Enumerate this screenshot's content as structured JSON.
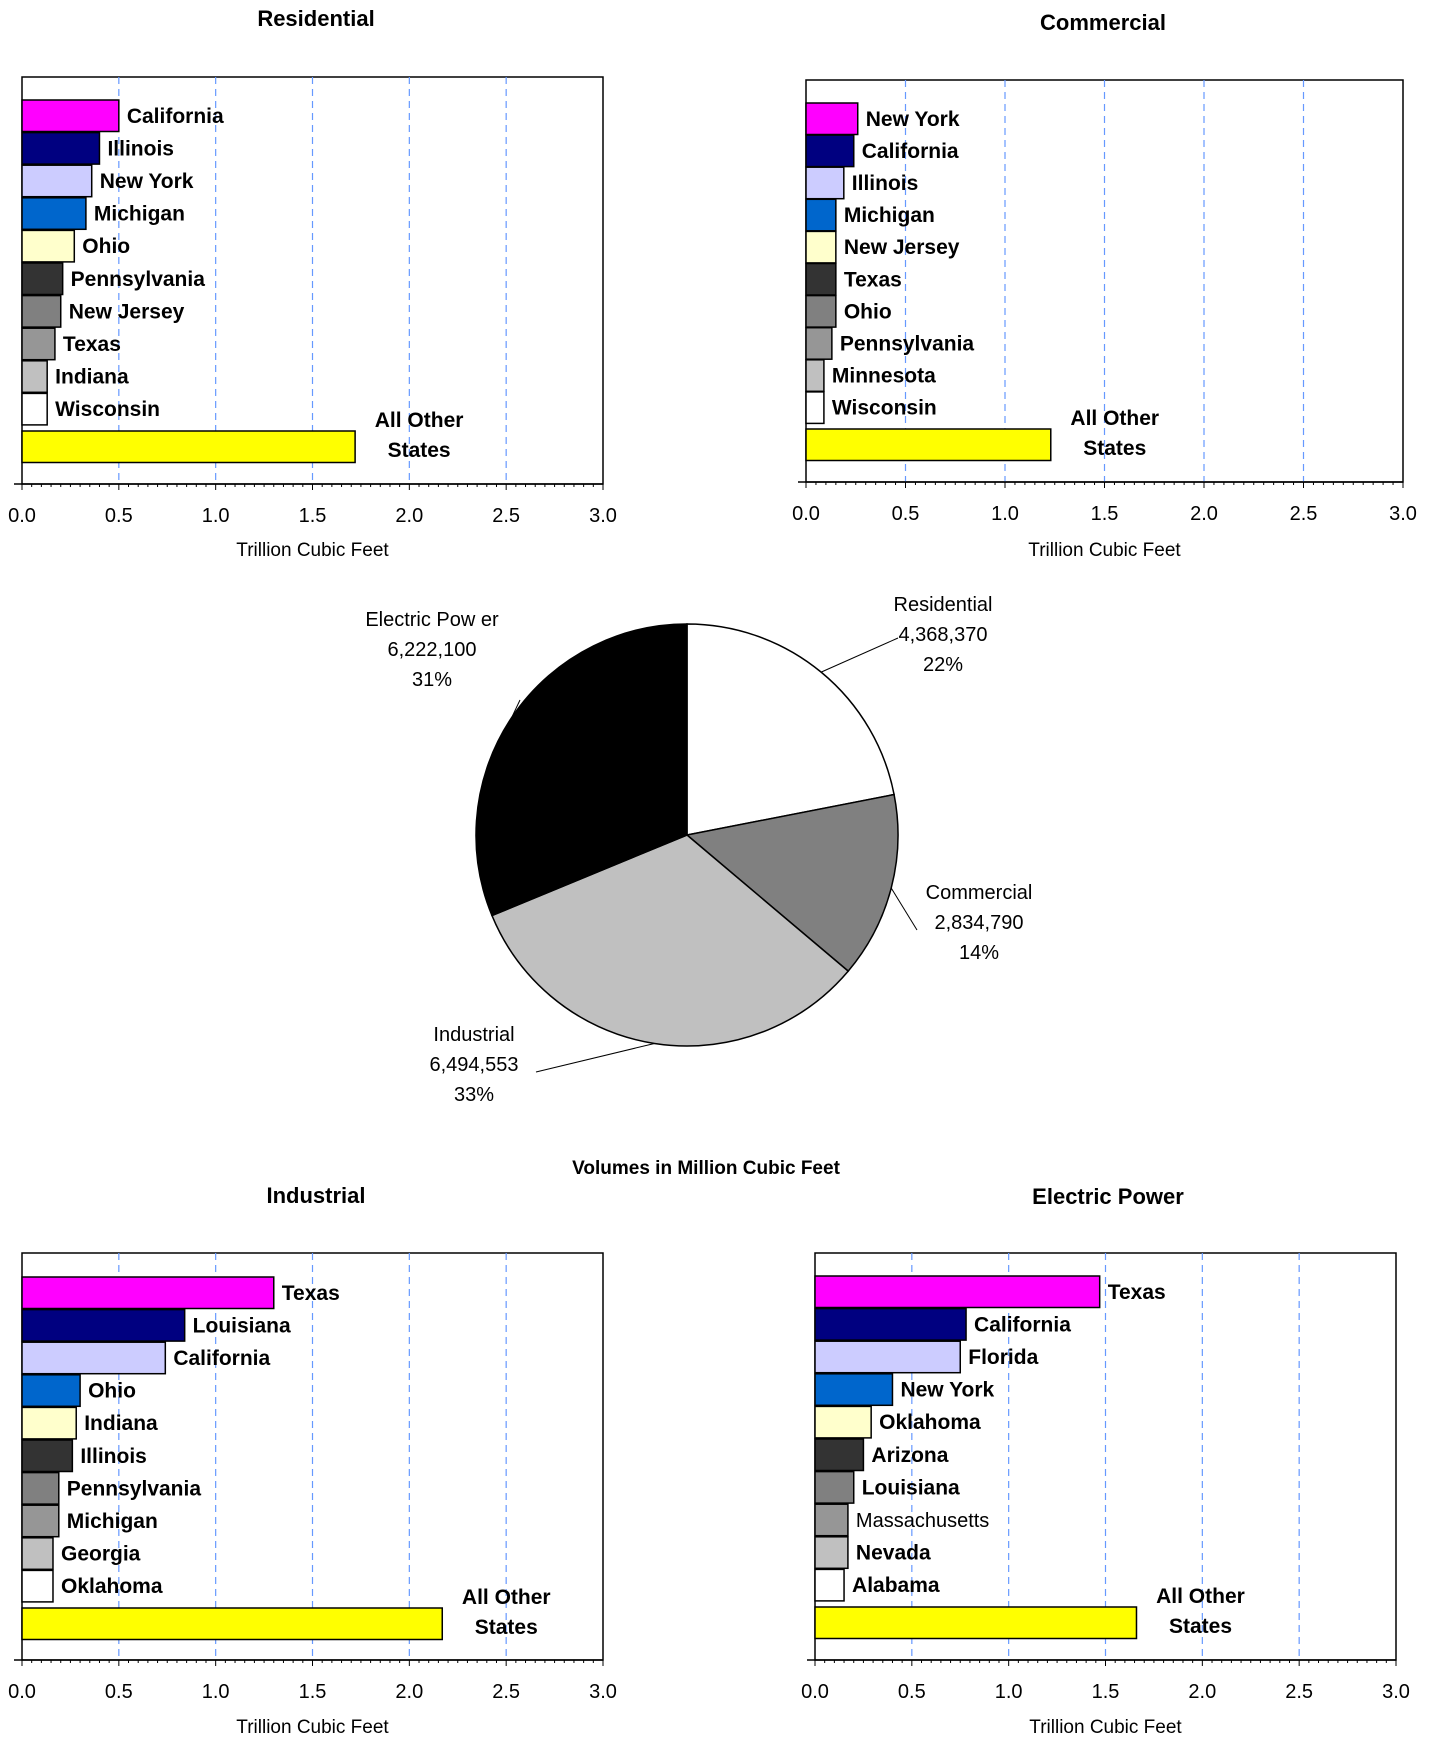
{
  "caption": "Volumes in Million Cubic Feet",
  "colors": [
    "#FF00FF",
    "#000080",
    "#CCCCFF",
    "#0066CC",
    "#FFFFCC",
    "#333333",
    "#808080",
    "#969696",
    "#C0C0C0",
    "#FFFFFF",
    "#FFFF00"
  ],
  "chart_data": [
    {
      "type": "bar",
      "orientation": "horizontal",
      "title": "Residential",
      "xlabel": "Trillion Cubic Feet",
      "xlim": [
        0,
        3
      ],
      "xticks": [
        "0.0",
        "0.5",
        "1.0",
        "1.5",
        "2.0",
        "2.5",
        "3.0"
      ],
      "grid": "vertical dashed",
      "categories": [
        "California",
        "Illinois",
        "New York",
        "Michigan",
        "Ohio",
        "Pennsylvania",
        "New Jersey",
        "Texas",
        "Indiana",
        "Wisconsin",
        "All Other States"
      ],
      "label_lines": [
        [
          "California"
        ],
        [
          "Illinois"
        ],
        [
          "New York"
        ],
        [
          "Michigan"
        ],
        [
          "Ohio"
        ],
        [
          "Pennsylvania"
        ],
        [
          "New Jersey"
        ],
        [
          "Texas"
        ],
        [
          "Indiana"
        ],
        [
          "Wisconsin"
        ],
        [
          "All Other",
          "States"
        ]
      ],
      "values": [
        0.5,
        0.4,
        0.36,
        0.33,
        0.27,
        0.21,
        0.2,
        0.17,
        0.13,
        0.13,
        1.72
      ]
    },
    {
      "type": "bar",
      "orientation": "horizontal",
      "title": "Commercial",
      "xlabel": "Trillion Cubic Feet",
      "xlim": [
        0,
        3
      ],
      "xticks": [
        "0.0",
        "0.5",
        "1.0",
        "1.5",
        "2.0",
        "2.5",
        "3.0"
      ],
      "grid": "vertical dashed",
      "categories": [
        "New York",
        "California",
        "Illinois",
        "Michigan",
        "New Jersey",
        "Texas",
        "Ohio",
        "Pennsylvania",
        "Minnesota",
        "Wisconsin",
        "All Other States"
      ],
      "label_lines": [
        [
          "New York"
        ],
        [
          "California"
        ],
        [
          "Illinois"
        ],
        [
          "Michigan"
        ],
        [
          "New Jersey"
        ],
        [
          "Texas"
        ],
        [
          "Ohio"
        ],
        [
          "Pennsylvania"
        ],
        [
          "Minnesota"
        ],
        [
          "Wisconsin"
        ],
        [
          "All Other",
          "States"
        ]
      ],
      "values": [
        0.26,
        0.24,
        0.19,
        0.15,
        0.15,
        0.15,
        0.15,
        0.13,
        0.09,
        0.09,
        1.23
      ]
    },
    {
      "type": "pie",
      "slices": [
        {
          "name": "Residential",
          "value": 4368370,
          "value_label": "4,368,370",
          "percent": "22%"
        },
        {
          "name": "Commercial",
          "value": 2834790,
          "value_label": "2,834,790",
          "percent": "14%"
        },
        {
          "name": "Industrial",
          "value": 6494553,
          "value_label": "6,494,553",
          "percent": "33%"
        },
        {
          "name": "Electric Pow er",
          "value": 6222100,
          "value_label": "6,222,100",
          "percent": "31%"
        }
      ],
      "slice_colors": [
        "#FFFFFF",
        "#808080",
        "#C0C0C0",
        "#000000"
      ]
    },
    {
      "type": "bar",
      "orientation": "horizontal",
      "title": "Industrial",
      "xlabel": "Trillion Cubic Feet",
      "xlim": [
        0,
        3
      ],
      "xticks": [
        "0.0",
        "0.5",
        "1.0",
        "1.5",
        "2.0",
        "2.5",
        "3.0"
      ],
      "grid": "vertical dashed",
      "categories": [
        "Texas",
        "Louisiana",
        "California",
        "Ohio",
        "Indiana",
        "Illinois",
        "Pennsylvania",
        "Michigan",
        "Georgia",
        "Oklahoma",
        "All Other States"
      ],
      "label_lines": [
        [
          "Texas"
        ],
        [
          "Louisiana"
        ],
        [
          "California"
        ],
        [
          "Ohio"
        ],
        [
          "Indiana"
        ],
        [
          "Illinois"
        ],
        [
          "Pennsylvania"
        ],
        [
          "Michigan"
        ],
        [
          "Georgia"
        ],
        [
          "Oklahoma"
        ],
        [
          "All Other",
          "States"
        ]
      ],
      "values": [
        1.3,
        0.84,
        0.74,
        0.3,
        0.28,
        0.26,
        0.19,
        0.19,
        0.16,
        0.16,
        2.17
      ]
    },
    {
      "type": "bar",
      "orientation": "horizontal",
      "title": "Electric Power",
      "xlabel": "Trillion Cubic Feet",
      "xlim": [
        0,
        3
      ],
      "xticks": [
        "0.0",
        "0.5",
        "1.0",
        "1.5",
        "2.0",
        "2.5",
        "3.0"
      ],
      "grid": "vertical dashed",
      "categories": [
        "Texas",
        "California",
        "Florida",
        "New York",
        "Oklahoma",
        "Arizona",
        "Louisiana",
        "Massachusetts",
        "Nevada",
        "Alabama",
        "All Other States"
      ],
      "label_lines": [
        [
          "Texas"
        ],
        [
          "California"
        ],
        [
          "Florida"
        ],
        [
          "New York"
        ],
        [
          "Oklahoma"
        ],
        [
          "Arizona"
        ],
        [
          "Louisiana"
        ],
        [
          "Massachusetts"
        ],
        [
          "Nevada"
        ],
        [
          "Alabama"
        ],
        [
          "All Other",
          "States"
        ]
      ],
      "values": [
        1.47,
        0.78,
        0.75,
        0.4,
        0.29,
        0.25,
        0.2,
        0.17,
        0.17,
        0.15,
        1.66
      ]
    }
  ]
}
